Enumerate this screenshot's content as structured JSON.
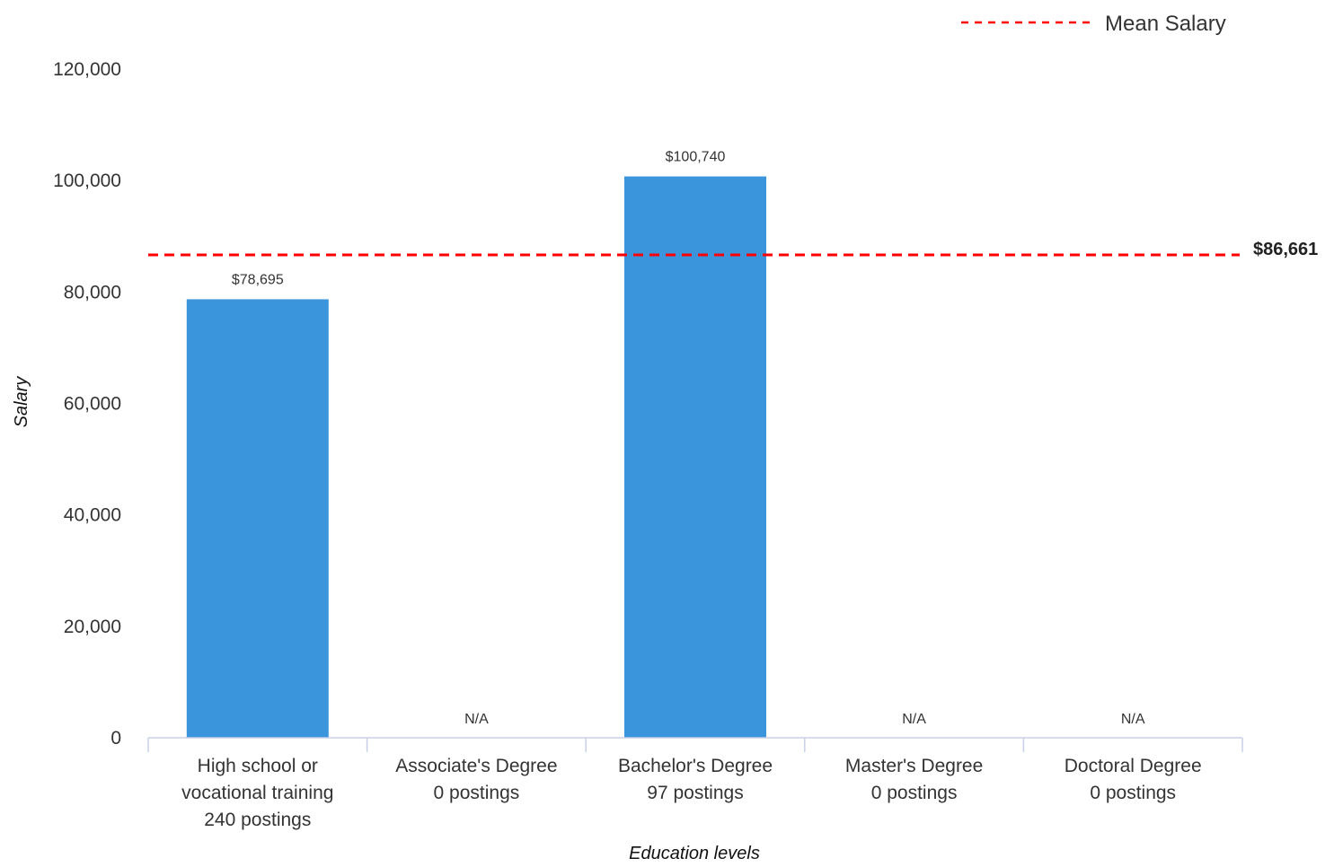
{
  "chart_data": {
    "type": "bar",
    "categories": [
      [
        "High school or",
        "vocational training",
        "240 postings"
      ],
      [
        "Associate's Degree",
        "0 postings"
      ],
      [
        "Bachelor's Degree",
        "97 postings"
      ],
      [
        "Master's Degree",
        "0 postings"
      ],
      [
        "Doctoral Degree",
        "0 postings"
      ]
    ],
    "values": [
      78695,
      null,
      100740,
      null,
      null
    ],
    "data_labels": [
      "$78,695",
      "N/A",
      "$100,740",
      "N/A",
      "N/A"
    ],
    "xlabel": "Education levels",
    "ylabel": "Salary",
    "ylim": [
      0,
      120000
    ],
    "yticks": [
      0,
      20000,
      40000,
      60000,
      80000,
      100000,
      120000
    ],
    "ytick_labels": [
      "0",
      "20,000",
      "40,000",
      "60,000",
      "80,000",
      "100,000",
      "120,000"
    ],
    "grid": false,
    "reference_line": {
      "name": "Mean Salary",
      "value": 86661,
      "label": "$86,661",
      "style": "dashed",
      "color": "#ff0000"
    },
    "legend": {
      "position": "top-right",
      "entries": [
        "Mean Salary"
      ]
    },
    "colors": {
      "bar": "#3b95dc",
      "axis": "#c8d0e8",
      "mean_line": "#ff0000"
    }
  }
}
